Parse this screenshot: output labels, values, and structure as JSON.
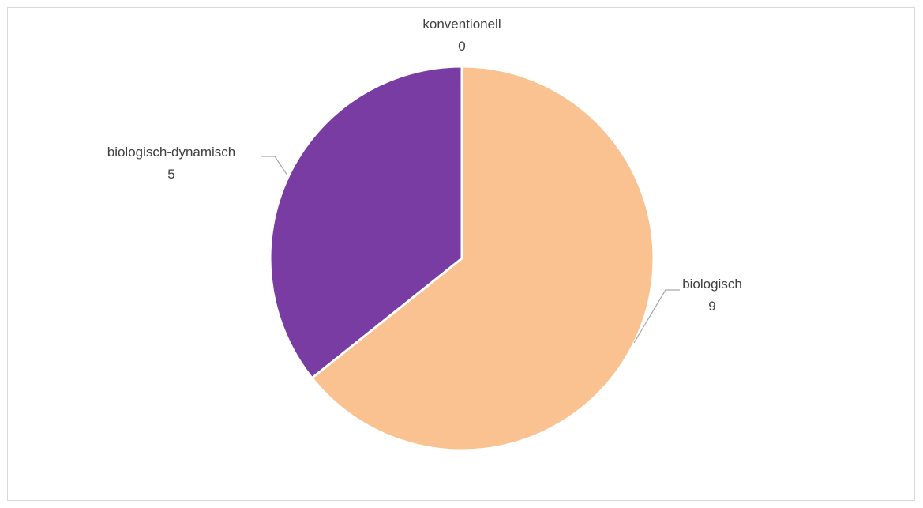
{
  "chart_data": {
    "type": "pie",
    "title": "",
    "categories": [
      "konventionell",
      "biologisch",
      "biologisch-dynamisch"
    ],
    "values": [
      0,
      9,
      5
    ],
    "colors": [
      "#4472C4",
      "#F9C290",
      "#783CA3"
    ],
    "data_labels": [
      {
        "category": "konventionell",
        "value": "0"
      },
      {
        "category": "biologisch",
        "value": "9"
      },
      {
        "category": "biologisch-dynamisch",
        "value": "5"
      }
    ],
    "legend": "none",
    "start_angle_deg": 0,
    "direction": "clockwise"
  }
}
